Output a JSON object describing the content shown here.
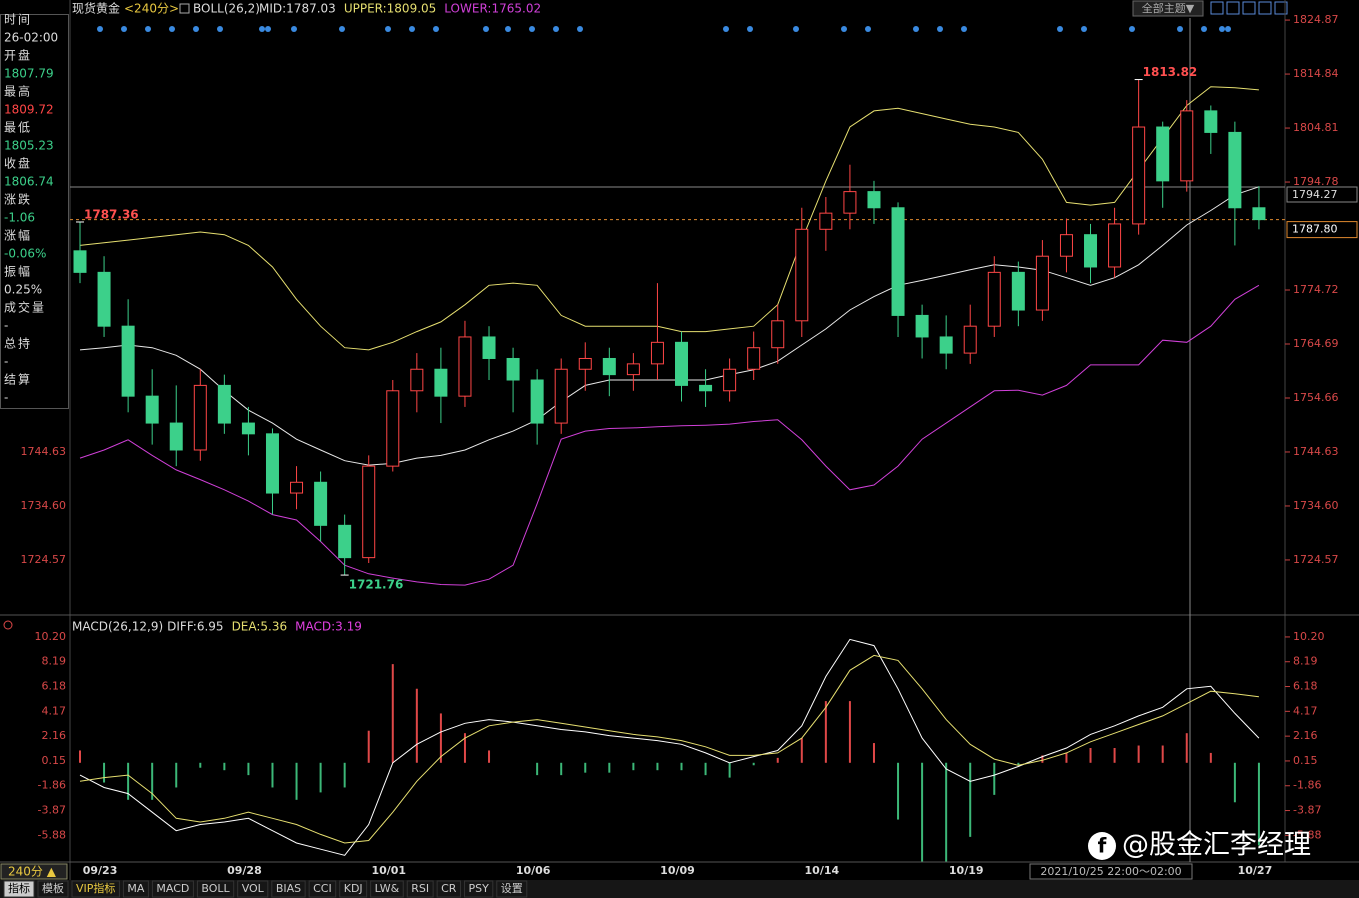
{
  "toolbar": {
    "title": "现货黄金",
    "period": "<240分>",
    "indicator": "BOLL(26,2)",
    "theme": "全部主题▼"
  },
  "info_panel": [
    {
      "label": "时间",
      "value": "26-02:00"
    },
    {
      "label": "开盘",
      "value": "1807.79"
    },
    {
      "label": "最高",
      "value": "1809.72"
    },
    {
      "label": "最低",
      "value": "1805.23"
    },
    {
      "label": "收盘",
      "value": "1806.74"
    },
    {
      "label": "涨跌",
      "value": "-1.06"
    },
    {
      "label": "涨幅",
      "value": "-0.06%"
    },
    {
      "label": "振幅",
      "value": "0.25%"
    },
    {
      "label": "成交量",
      "value": "-"
    },
    {
      "label": "总持",
      "value": "-"
    },
    {
      "label": "结算",
      "value": "-"
    }
  ],
  "chart_data": [
    {
      "type": "candlestick",
      "categories": [
        null,
        "09/23",
        null,
        null,
        null,
        null,
        null,
        "09/28",
        null,
        null,
        null,
        null,
        null,
        "10/01",
        null,
        null,
        null,
        null,
        null,
        "10/06",
        null,
        null,
        null,
        null,
        null,
        "10/09",
        null,
        null,
        null,
        null,
        null,
        "10/14",
        null,
        null,
        null,
        null,
        null,
        "10/19",
        null,
        null,
        null,
        null,
        null,
        null,
        null,
        null,
        null,
        null,
        null,
        "10/27"
      ],
      "candles": [
        [
          1782,
          1787.36,
          1776,
          1778
        ],
        [
          1778,
          1781,
          1766,
          1768
        ],
        [
          1768,
          1773,
          1752,
          1755
        ],
        [
          1755,
          1760,
          1746,
          1750
        ],
        [
          1750,
          1757,
          1742,
          1745
        ],
        [
          1745,
          1760,
          1743,
          1757
        ],
        [
          1757,
          1759,
          1748,
          1750
        ],
        [
          1750,
          1753,
          1744,
          1748
        ],
        [
          1748,
          1749,
          1733,
          1737
        ],
        [
          1737,
          1742,
          1734,
          1739
        ],
        [
          1739,
          1741,
          1728,
          1731
        ],
        [
          1731,
          1733,
          1721.76,
          1725
        ],
        [
          1725,
          1744,
          1724,
          1742
        ],
        [
          1742,
          1758,
          1741,
          1756
        ],
        [
          1756,
          1763,
          1752,
          1760
        ],
        [
          1760,
          1764,
          1750,
          1755
        ],
        [
          1755,
          1769,
          1753,
          1766
        ],
        [
          1766,
          1768,
          1758,
          1762
        ],
        [
          1762,
          1764,
          1752,
          1758
        ],
        [
          1758,
          1760,
          1746,
          1750
        ],
        [
          1750,
          1762,
          1748,
          1760
        ],
        [
          1760,
          1765,
          1756,
          1762
        ],
        [
          1762,
          1764,
          1755,
          1759
        ],
        [
          1759,
          1763,
          1756,
          1761
        ],
        [
          1761,
          1776,
          1758,
          1765
        ],
        [
          1765,
          1767,
          1754,
          1757
        ],
        [
          1757,
          1760,
          1753,
          1756
        ],
        [
          1756,
          1762,
          1754,
          1760
        ],
        [
          1760,
          1767,
          1758,
          1764
        ],
        [
          1764,
          1772,
          1761,
          1769
        ],
        [
          1769,
          1790,
          1766,
          1786
        ],
        [
          1786,
          1792,
          1782,
          1789
        ],
        [
          1789,
          1798,
          1786,
          1793
        ],
        [
          1793,
          1795,
          1787,
          1790
        ],
        [
          1790,
          1791,
          1766,
          1770
        ],
        [
          1770,
          1772,
          1762,
          1766
        ],
        [
          1766,
          1770,
          1760,
          1763
        ],
        [
          1763,
          1772,
          1761,
          1768
        ],
        [
          1768,
          1781,
          1766,
          1778
        ],
        [
          1778,
          1780,
          1768,
          1771
        ],
        [
          1771,
          1784,
          1769,
          1781
        ],
        [
          1781,
          1788,
          1778,
          1785
        ],
        [
          1785,
          1787,
          1776,
          1779
        ],
        [
          1779,
          1790,
          1777,
          1787
        ],
        [
          1787,
          1813.82,
          1785,
          1805
        ],
        [
          1805,
          1806,
          1790,
          1795
        ],
        [
          1795,
          1810,
          1793,
          1808
        ],
        [
          1808,
          1809,
          1800,
          1804
        ],
        [
          1804,
          1806,
          1783,
          1790
        ],
        [
          1790,
          1794,
          1786,
          1787.8
        ]
      ],
      "up_color": "#ff4646",
      "down_color": "#3cd08a",
      "series": [
        {
          "name": "MID:1787.03",
          "color": "#e8e8e8",
          "values": [
            1763.6,
            1764,
            1764.5,
            1764,
            1762.6,
            1760,
            1756,
            1752.4,
            1750,
            1747,
            1745,
            1743,
            1742.2,
            1742.5,
            1743.5,
            1744,
            1745,
            1746.9,
            1748.5,
            1750.6,
            1754,
            1757,
            1758,
            1758,
            1758,
            1758,
            1758,
            1759,
            1759.9,
            1761.5,
            1764.5,
            1767.5,
            1771,
            1773.5,
            1775.6,
            1776.5,
            1777.5,
            1778.5,
            1779.4,
            1779,
            1778.4,
            1777,
            1775.6,
            1777,
            1779.4,
            1783,
            1786.8,
            1789.5,
            1792.4,
            1793.9
          ]
        },
        {
          "name": "UPPER:1809.05",
          "color": "#e6df70",
          "values": [
            1783,
            1783.5,
            1784,
            1784.5,
            1785,
            1785.5,
            1785,
            1783,
            1779,
            1773,
            1768,
            1764,
            1763.6,
            1765,
            1767,
            1768.8,
            1772,
            1775.6,
            1776,
            1775.6,
            1770,
            1768,
            1768,
            1768,
            1768,
            1767,
            1767,
            1767.5,
            1768,
            1772,
            1784,
            1795,
            1805,
            1808,
            1808.5,
            1807.5,
            1806.5,
            1805.5,
            1805,
            1804,
            1799,
            1791,
            1790.5,
            1791,
            1797,
            1803,
            1809,
            1812.5,
            1812.3,
            1811.9
          ]
        },
        {
          "name": "LOWER:1765.02",
          "color": "#d040d8",
          "values": [
            1743.5,
            1745,
            1746.9,
            1744,
            1741.3,
            1739.5,
            1737.6,
            1735.5,
            1733,
            1732,
            1728,
            1723.6,
            1722,
            1721.2,
            1720.5,
            1720,
            1719.9,
            1721,
            1723.6,
            1735,
            1747,
            1748.5,
            1749,
            1749.1,
            1749.3,
            1749.5,
            1749.6,
            1749.8,
            1750.3,
            1750.6,
            1746.9,
            1742,
            1737.6,
            1738.5,
            1742,
            1747,
            1750,
            1753,
            1756,
            1756.1,
            1755.2,
            1757,
            1760.8,
            1760.8,
            1760.8,
            1765.4,
            1765,
            1768,
            1773,
            1775.6
          ]
        }
      ],
      "ylim": [
        1714.9,
        1828.6
      ],
      "yticks": [
        1824.87,
        1814.84,
        1804.81,
        1794.78,
        1774.72,
        1764.69,
        1754.66,
        1744.63,
        {
          "value": 1734.6,
          "label": "1734.60"
        },
        1724.57
      ],
      "annotations": [
        1787.36,
        1813.82,
        1721.76
      ],
      "crosshair_price": 1794.27,
      "last_price": {
        "value": 1787.8,
        "label": "1787.80"
      }
    },
    {
      "type": "macd",
      "title": "MACD(26,12,9)",
      "series": [
        {
          "name": "DIFF:6.95",
          "color": "#ffffff",
          "values": [
            -1,
            -2,
            -2.5,
            -4,
            -5.5,
            -5,
            -4.8,
            -4.5,
            -5.5,
            -6.5,
            -7,
            -7.5,
            -5,
            0,
            1.5,
            2.5,
            3.2,
            3.5,
            3.3,
            3,
            2.7,
            2.5,
            2.2,
            2,
            1.8,
            1.5,
            0.8,
            0,
            0.5,
            1,
            3,
            7,
            10,
            9.5,
            6,
            2,
            -0.5,
            -1.5,
            -1,
            -0.3,
            0.5,
            1.2,
            2.3,
            3,
            3.8,
            4.5,
            6,
            6.2,
            4,
            2
          ]
        },
        {
          "name": "DEA:5.36",
          "color": "#e6df70",
          "values": [
            -1.5,
            -1.2,
            -1,
            -2.5,
            -4.5,
            -4.8,
            -4.5,
            -4,
            -4.5,
            -5,
            -5.8,
            -6.5,
            -6.3,
            -4,
            -1.5,
            0.5,
            2,
            3,
            3.3,
            3.5,
            3.2,
            2.9,
            2.6,
            2.3,
            2.1,
            1.8,
            1.3,
            0.6,
            0.6,
            0.8,
            2,
            4.5,
            7.5,
            8.7,
            8.3,
            6,
            3.5,
            1.5,
            0.3,
            -0.2,
            0.2,
            0.8,
            1.7,
            2.4,
            3.1,
            3.8,
            4.8,
            5.8,
            5.6,
            5.36
          ]
        }
      ],
      "histogram": {
        "name": "MACD:3.19",
        "color": "#e040e0",
        "up_color": "#e04848",
        "down_color": "#3cb878",
        "values": [
          1,
          -1.6,
          -3,
          -3,
          -2,
          -0.4,
          -0.6,
          -1,
          -2,
          -3,
          -2.4,
          -2,
          2.6,
          8,
          6,
          4,
          2.4,
          1,
          0,
          -1,
          -1,
          -0.8,
          -0.8,
          -0.6,
          -0.6,
          -0.6,
          -1,
          -1.2,
          -0.2,
          0.4,
          2,
          5,
          5,
          1.6,
          -4.6,
          -8,
          -8,
          -6,
          -2.6,
          -0.2,
          0.6,
          0.8,
          1.2,
          1.2,
          1.4,
          1.4,
          2.4,
          0.8,
          -3.2,
          -6.7
        ]
      },
      "ylim": [
        -8.04,
        10.6
      ],
      "yticks": [
        {
          "value": 10.2,
          "label": "10.20"
        },
        8.19,
        6.18,
        4.17,
        2.16,
        0.15,
        -1.86,
        -3.87,
        -5.88
      ]
    }
  ],
  "x_axis": {
    "period": "240分 ▲",
    "crosshair_time": "2021/10/25 22:00～02:00"
  },
  "tabs": [
    "指标",
    "模板",
    "VIP指标",
    "MA",
    "MACD",
    "BOLL",
    "VOL",
    "BIAS",
    "CCI",
    "KDJ",
    "LW&",
    "RSI",
    "CR",
    "PSY",
    "设置"
  ],
  "watermark": "@股金汇李经理"
}
